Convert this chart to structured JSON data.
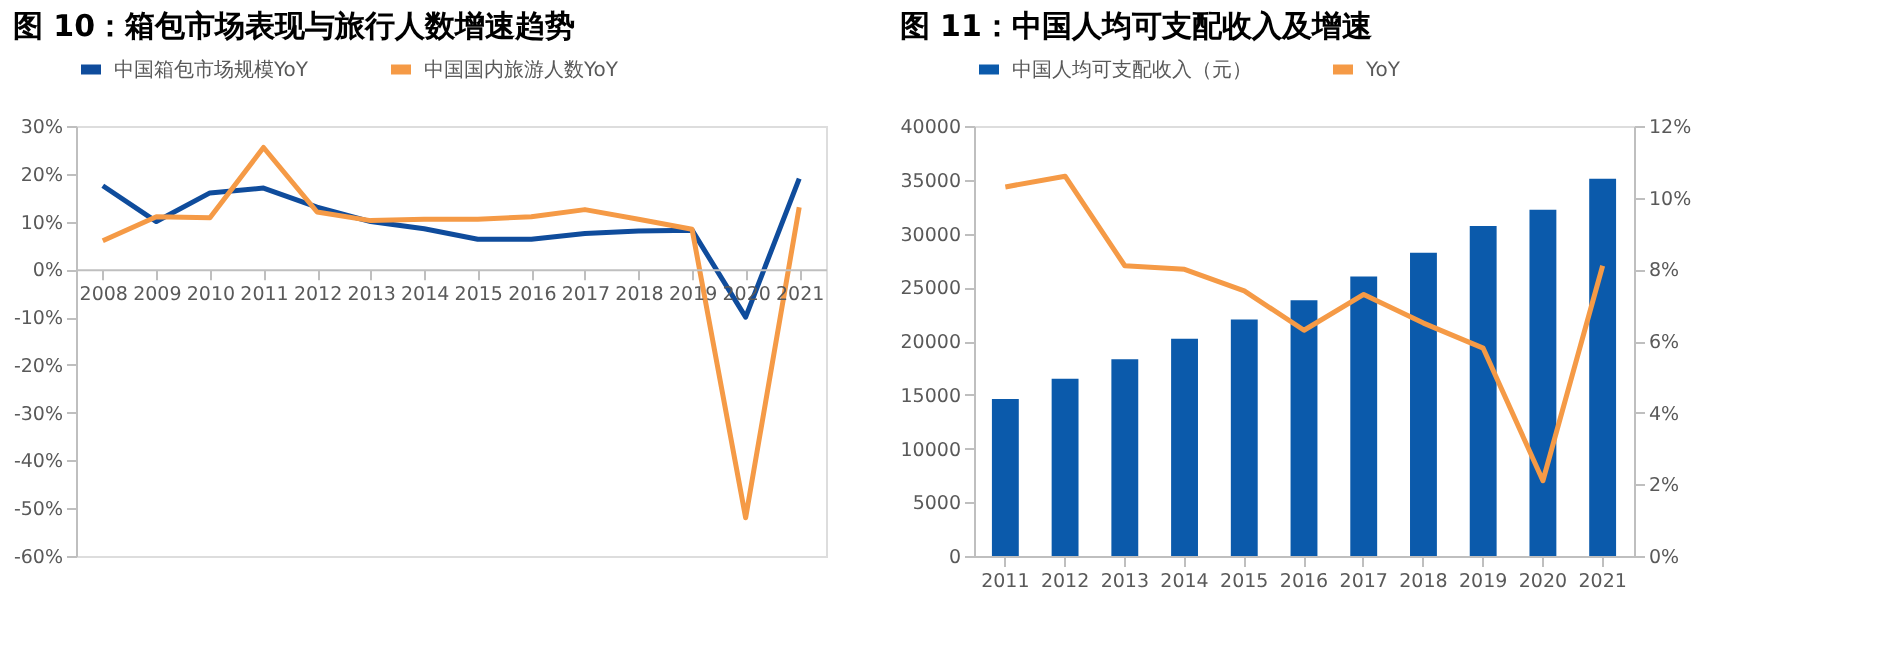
{
  "chart_data": [
    {
      "type": "line",
      "title": "图 10：箱包市场表现与旅行人数增速趋势",
      "categories": [
        "2008",
        "2009",
        "2010",
        "2011",
        "2012",
        "2013",
        "2014",
        "2015",
        "2016",
        "2017",
        "2018",
        "2019",
        "2020",
        "2021"
      ],
      "series": [
        {
          "name": "中国箱包市场规模YoY",
          "color": "#0f4c9c",
          "values": [
            17.5,
            10,
            16,
            17,
            13,
            10,
            8.5,
            6.3,
            6.3,
            7.5,
            8,
            8.2,
            -10,
            19
          ]
        },
        {
          "name": "中国国内旅游人数YoY",
          "color": "#f59a46",
          "values": [
            6,
            11,
            10.8,
            25.5,
            12,
            10.2,
            10.5,
            10.5,
            11,
            12.5,
            10.5,
            8.4,
            -52,
            13
          ]
        }
      ],
      "ylim": [
        -60,
        30
      ],
      "yticks": [
        {
          "value": -60,
          "label": "-60%"
        },
        {
          "value": -50,
          "label": "-50%"
        },
        {
          "value": -40,
          "label": "-40%"
        },
        {
          "value": -30,
          "label": "-30%"
        },
        {
          "value": -20,
          "label": "-20%"
        },
        {
          "value": -10,
          "label": "-10%"
        },
        {
          "value": 0,
          "label": "0%"
        },
        {
          "value": 10,
          "label": "10%"
        },
        {
          "value": 20,
          "label": "20%"
        },
        {
          "value": 30,
          "label": "30%"
        }
      ],
      "grid": false,
      "legend": "top",
      "marker": "none",
      "line_style": "solid"
    },
    {
      "type": "bar",
      "title": "图 11：中国人均可支配收入及增速",
      "categories": [
        "2011",
        "2012",
        "2013",
        "2014",
        "2015",
        "2016",
        "2017",
        "2018",
        "2019",
        "2020",
        "2021"
      ],
      "series": [
        {
          "name": "中国人均可支配收入（元）",
          "type": "bar",
          "color": "#0b5aab",
          "values": [
            14600,
            16500,
            18300,
            20200,
            22000,
            23800,
            26000,
            28200,
            30700,
            32200,
            35100
          ]
        },
        {
          "name": "YoY",
          "type": "line",
          "axis": "y2",
          "color": "#f59a46",
          "values": [
            10.3,
            10.6,
            8.1,
            8.0,
            7.4,
            6.3,
            7.3,
            6.5,
            5.8,
            2.1,
            8.1
          ]
        }
      ],
      "ylim": [
        0,
        40000
      ],
      "yticks": [
        0,
        5000,
        10000,
        15000,
        20000,
        25000,
        30000,
        35000,
        40000
      ],
      "y2lim": [
        0,
        12
      ],
      "y2ticks": [
        {
          "value": 0,
          "label": "0%"
        },
        {
          "value": 2,
          "label": "2%"
        },
        {
          "value": 4,
          "label": "4%"
        },
        {
          "value": 6,
          "label": "6%"
        },
        {
          "value": 8,
          "label": "8%"
        },
        {
          "value": 10,
          "label": "10%"
        },
        {
          "value": 12,
          "label": "12%"
        }
      ],
      "grid": false,
      "legend": "top",
      "marker": "none",
      "line_style": "solid"
    }
  ]
}
